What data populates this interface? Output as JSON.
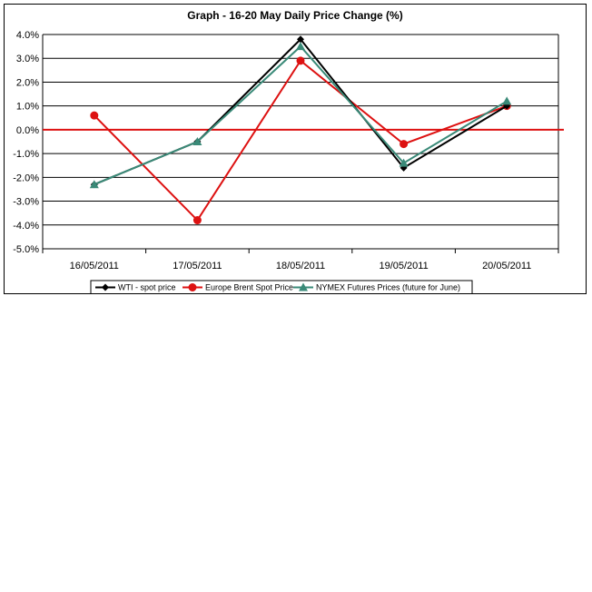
{
  "chart_data": {
    "type": "line",
    "title": "Graph -   16-20 May Daily Price Change (%)",
    "xlabel": "",
    "ylabel": "",
    "categories": [
      "16/05/2011",
      "17/05/2011",
      "18/05/2011",
      "19/05/2011",
      "20/05/2011"
    ],
    "ylim": [
      -5.0,
      4.0
    ],
    "yticks": [
      4.0,
      3.0,
      2.0,
      1.0,
      0.0,
      -1.0,
      -2.0,
      -3.0,
      -4.0,
      -5.0
    ],
    "ytick_labels": [
      "4.0%",
      "3.0%",
      "2.0%",
      "1.0%",
      "0.0%",
      "-1.0%",
      "-2.0%",
      "-3.0%",
      "-4.0%",
      "-5.0%"
    ],
    "grid": "horizontal",
    "legend_position": "bottom",
    "zero_line_color": "#dd1111",
    "series": [
      {
        "name": "WTI - spot price",
        "values": [
          -2.3,
          -0.5,
          3.8,
          -1.6,
          1.0
        ],
        "color": "#000000",
        "marker": "diamond"
      },
      {
        "name": "Europe Brent Spot Price",
        "values": [
          0.6,
          -3.8,
          2.9,
          -0.6,
          1.0
        ],
        "color": "#dd1111",
        "marker": "circle"
      },
      {
        "name": "NYMEX Futures Prices (future for June)",
        "values": [
          -2.3,
          -0.5,
          3.5,
          -1.4,
          1.2
        ],
        "color": "#3a8a78",
        "marker": "triangle"
      }
    ]
  }
}
